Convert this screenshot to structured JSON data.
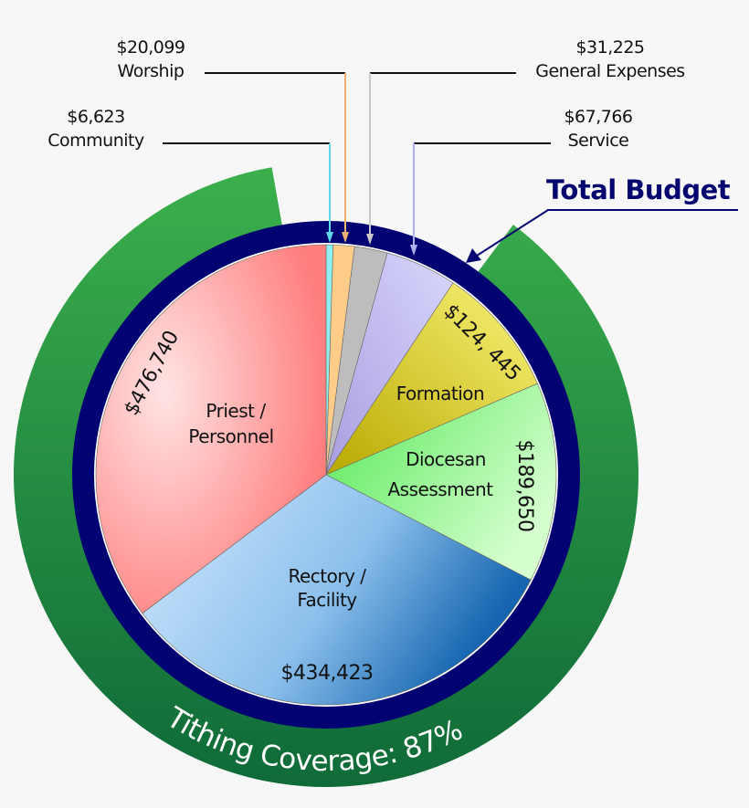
{
  "chart_data": {
    "type": "pie",
    "title": "",
    "start": "top",
    "direction": "clockwise",
    "slices": [
      {
        "label": "Community",
        "value": 6623,
        "value_label": "$6,623",
        "color": "#8ff0f0"
      },
      {
        "label": "Worship",
        "value": 20099,
        "value_label": "$20,099",
        "color": "#ffcc8a"
      },
      {
        "label": "General Expenses",
        "value": 31225,
        "value_label": "$31,225",
        "color": "#bdbdbd"
      },
      {
        "label": "Service",
        "value": 67766,
        "value_label": "$67,766",
        "color": "#c9c6f6"
      },
      {
        "label": "Formation",
        "value": 124445,
        "value_label": "$124, 445",
        "color": "#e8e050"
      },
      {
        "label": "Diocesan Assessment",
        "value": 189650,
        "value_label": "$189,650",
        "color": "#8ef08e"
      },
      {
        "label": "Rectory / Facility",
        "value": 434423,
        "value_label": "$434,423",
        "color": "#8cc0ec"
      },
      {
        "label": "Priest / Personnel",
        "value": 476740,
        "value_label": "$476,740",
        "color": "#ffaaaa"
      }
    ],
    "total_ring": {
      "label": "Total Budget",
      "color": "#020272"
    },
    "coverage_ring": {
      "label": "Tithing Coverage: 87%",
      "percent": 87,
      "color": "#1c7a3c"
    }
  }
}
